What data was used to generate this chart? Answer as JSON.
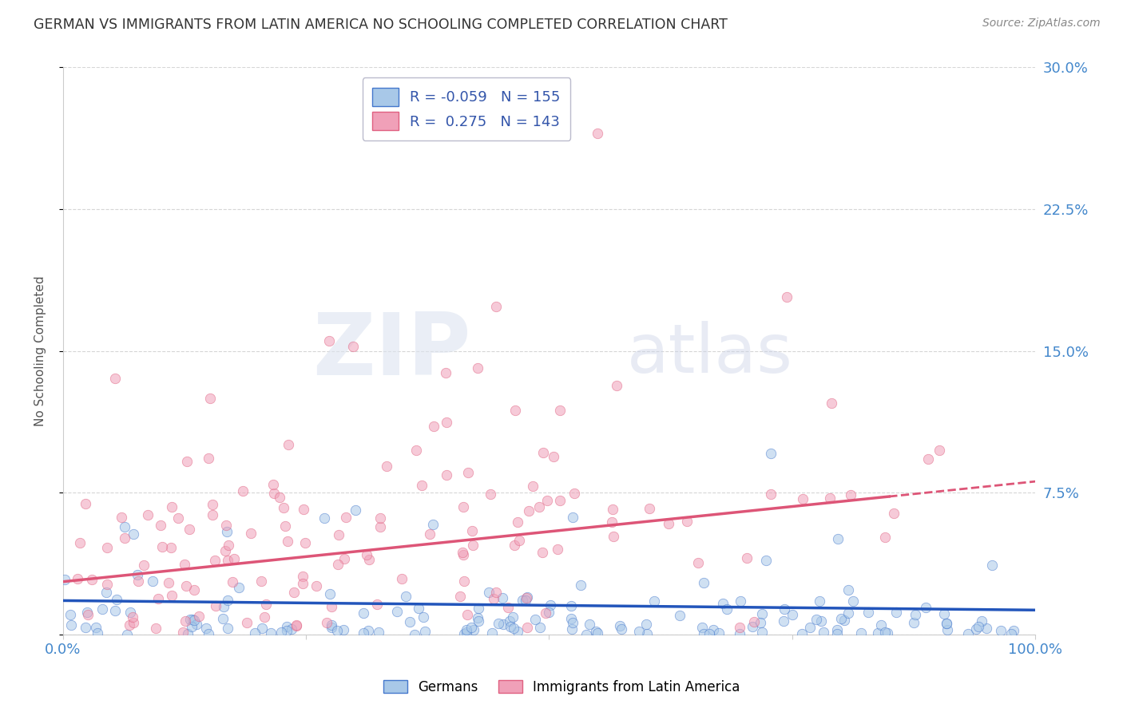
{
  "title": "GERMAN VS IMMIGRANTS FROM LATIN AMERICA NO SCHOOLING COMPLETED CORRELATION CHART",
  "source": "Source: ZipAtlas.com",
  "ylabel": "No Schooling Completed",
  "xlabel": "",
  "xlim": [
    0.0,
    1.0
  ],
  "ylim": [
    0.0,
    0.3
  ],
  "yticks": [
    0.0,
    0.075,
    0.15,
    0.225,
    0.3
  ],
  "ytick_labels": [
    "",
    "7.5%",
    "15.0%",
    "22.5%",
    "30.0%"
  ],
  "legend_labels": [
    "Germans",
    "Immigrants from Latin America"
  ],
  "blue_color": "#a8c8e8",
  "pink_color": "#f0a0b8",
  "blue_edge_color": "#4477cc",
  "pink_edge_color": "#e06080",
  "blue_line_color": "#2255bb",
  "pink_line_color": "#dd5577",
  "blue_R": -0.059,
  "blue_N": 155,
  "pink_R": 0.275,
  "pink_N": 143,
  "background_color": "#ffffff",
  "grid_color": "#cccccc",
  "title_color": "#333333",
  "axis_label_color": "#4488cc",
  "seed": 7
}
